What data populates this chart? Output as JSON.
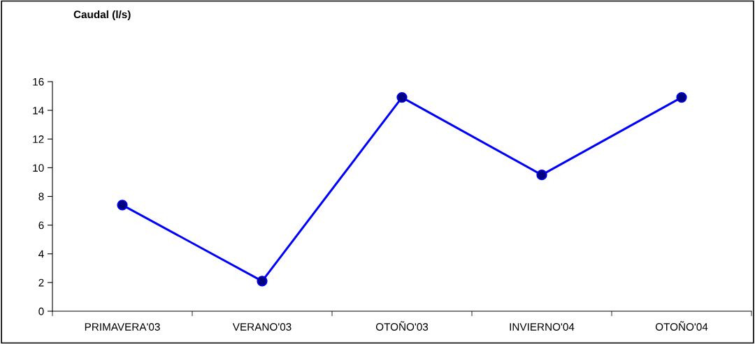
{
  "chart_data": {
    "type": "line",
    "annotations": [
      "Caudal (l/s)"
    ],
    "categories": [
      "PRIMAVERA'03",
      "VERANO'03",
      "OTOÑO'03",
      "INVIERNO'04",
      "OTOÑO'04"
    ],
    "series": [
      {
        "color": "#0000ff",
        "values": [
          7.4,
          2.1,
          14.9,
          9.5,
          14.9
        ]
      }
    ],
    "ylim": [
      0,
      16
    ],
    "yticks": [
      0,
      2,
      4,
      6,
      8,
      10,
      12,
      14,
      16
    ],
    "marker": "circle",
    "line_style": "solid",
    "grid": false,
    "legend": false
  }
}
